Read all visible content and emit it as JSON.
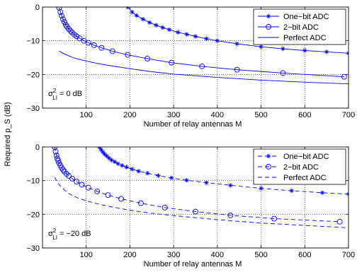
{
  "colors": {
    "series": "#0000ff",
    "axis": "#000000",
    "grid": "#000000"
  },
  "shared_ylabel": "Required p_S (dB)",
  "chart_data": [
    {
      "type": "line",
      "xlabel": "Number of relay antennas M",
      "ylabel": "",
      "xlim": [
        0,
        700
      ],
      "ylim": [
        -30,
        0
      ],
      "xticks": [
        100,
        200,
        300,
        400,
        500,
        600,
        700
      ],
      "yticks": [
        0,
        -10,
        -20,
        -30
      ],
      "grid": "dotted",
      "legend": "top-right",
      "annotation": {
        "symbol": "σ",
        "sup": "2",
        "sub": "LI",
        "rest": " = 0 dB"
      },
      "series": [
        {
          "name": "One−bit ADC",
          "marker": "star",
          "dash": "solid",
          "x": [
            195,
            205,
            215,
            230,
            245,
            260,
            275,
            290,
            310,
            330,
            350,
            375,
            400,
            445,
            500,
            550,
            600,
            650,
            700
          ],
          "y": [
            0,
            -1.5,
            -2.5,
            -3.6,
            -4.6,
            -5.4,
            -6.1,
            -6.7,
            -7.5,
            -8.1,
            -8.7,
            -9.4,
            -10.0,
            -10.9,
            -11.8,
            -12.4,
            -12.9,
            -13.3,
            -13.7
          ]
        },
        {
          "name": "2−bit ADC",
          "marker": "circle",
          "dash": "solid",
          "x": [
            38,
            41,
            44,
            47,
            50,
            53,
            56,
            60,
            64,
            68,
            73,
            78,
            85,
            95,
            105,
            118,
            135,
            160,
            195,
            240,
            295,
            365,
            445,
            550,
            690
          ],
          "y": [
            -0.2,
            -1.5,
            -2.6,
            -3.6,
            -4.4,
            -5.2,
            -5.8,
            -6.5,
            -7.1,
            -7.6,
            -8.2,
            -8.7,
            -9.3,
            -10.0,
            -10.6,
            -11.3,
            -12.1,
            -13.1,
            -14.2,
            -15.3,
            -16.5,
            -17.6,
            -18.6,
            -19.6,
            -20.7
          ]
        },
        {
          "name": "Perfect ADC",
          "marker": "none",
          "dash": "solid",
          "x": [
            38,
            40,
            45,
            50,
            55,
            60,
            70,
            80,
            100,
            120,
            150,
            200,
            250,
            300,
            400,
            500,
            600,
            700
          ],
          "y": [
            -13.0,
            -13.2,
            -13.6,
            -13.9,
            -14.2,
            -14.5,
            -15.0,
            -15.4,
            -16.0,
            -16.6,
            -17.3,
            -18.3,
            -19.2,
            -19.9,
            -20.9,
            -21.7,
            -22.3,
            -22.8
          ]
        }
      ]
    },
    {
      "type": "line",
      "xlabel": "Number of relay antennas M",
      "ylabel": "",
      "xlim": [
        0,
        700
      ],
      "ylim": [
        -30,
        0
      ],
      "xticks": [
        100,
        200,
        300,
        400,
        500,
        600,
        700
      ],
      "yticks": [
        0,
        -10,
        -20,
        -30
      ],
      "grid": "dotted",
      "legend": "top-right",
      "annotation": {
        "symbol": "σ",
        "sup": "2",
        "sub": "LI",
        "rest": " = −20 dB"
      },
      "series": [
        {
          "name": "One−bit ADC",
          "marker": "star",
          "dash": "dashed",
          "x": [
            130,
            134,
            138,
            142,
            147,
            152,
            158,
            165,
            173,
            182,
            192,
            205,
            220,
            240,
            265,
            295,
            330,
            375,
            430,
            500,
            570,
            640,
            700
          ],
          "y": [
            0,
            -0.8,
            -1.5,
            -2.1,
            -2.7,
            -3.3,
            -3.9,
            -4.4,
            -5.0,
            -5.5,
            -6.0,
            -6.6,
            -7.2,
            -7.8,
            -8.5,
            -9.2,
            -9.9,
            -10.6,
            -11.4,
            -12.3,
            -13.0,
            -13.6,
            -14.0
          ]
        },
        {
          "name": "2−bit ADC",
          "marker": "circle",
          "dash": "dashed",
          "x": [
            28,
            30,
            32,
            34,
            36,
            38,
            41,
            44,
            47,
            50,
            55,
            60,
            68,
            78,
            90,
            105,
            125,
            150,
            180,
            225,
            280,
            350,
            430,
            530,
            680
          ],
          "y": [
            0,
            -1.4,
            -2.5,
            -3.4,
            -4.1,
            -4.8,
            -5.5,
            -6.2,
            -6.8,
            -7.3,
            -8.0,
            -8.6,
            -9.4,
            -10.3,
            -11.2,
            -12.1,
            -13.2,
            -14.3,
            -15.4,
            -16.7,
            -18.0,
            -19.2,
            -20.3,
            -21.3,
            -22.2
          ]
        },
        {
          "name": "Perfect ADC",
          "marker": "none",
          "dash": "dashed",
          "x": [
            28,
            30,
            35,
            40,
            50,
            60,
            70,
            80,
            100,
            120,
            150,
            200,
            250,
            300,
            400,
            500,
            600,
            700
          ],
          "y": [
            -9.0,
            -9.5,
            -10.6,
            -11.5,
            -12.8,
            -13.8,
            -14.5,
            -15.1,
            -16.0,
            -16.7,
            -17.6,
            -18.8,
            -19.7,
            -20.4,
            -21.6,
            -22.6,
            -23.3,
            -24.0
          ]
        }
      ]
    }
  ]
}
